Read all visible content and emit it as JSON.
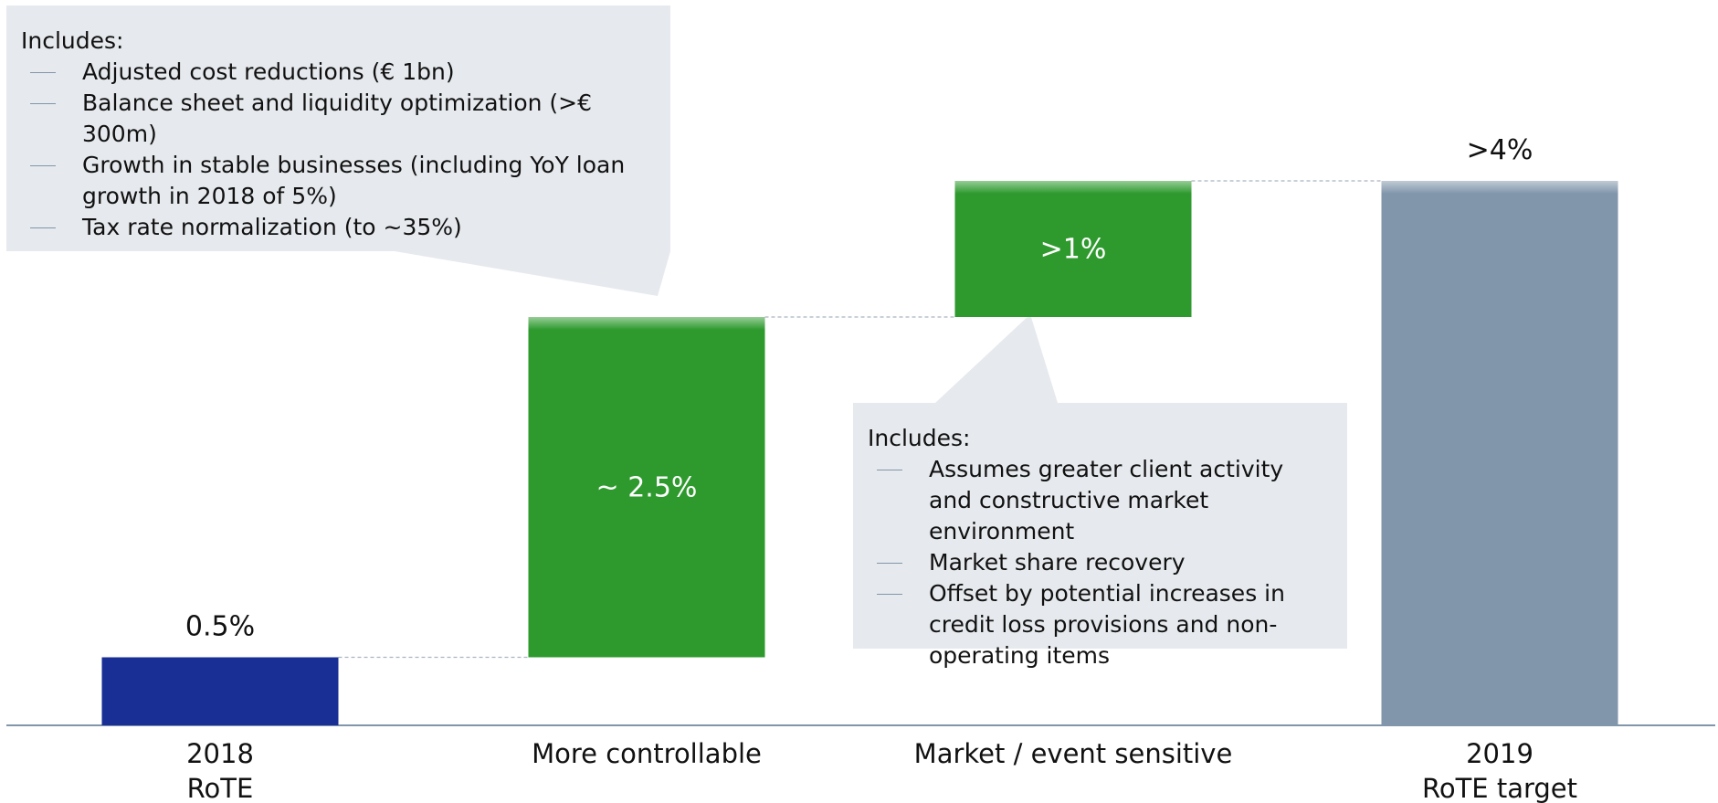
{
  "chart_data": {
    "type": "waterfall",
    "categories": [
      "2018\nRoTE",
      "More controllable",
      "Market / event sensitive",
      "2019\nRoTE target"
    ],
    "values": [
      0.5,
      2.5,
      1,
      4
    ],
    "value_labels": [
      "0.5%",
      "~ 2.5%",
      ">1%",
      ">4%"
    ],
    "colors": [
      "#1a2f96",
      "#2e9a2e",
      "#2e9a2e",
      "#8196aa"
    ],
    "ylim": [
      0,
      5
    ],
    "annotations": [
      {
        "title": "Includes:",
        "items": [
          "Adjusted cost reductions (€ 1bn)",
          "Balance sheet and liquidity optimization (>€ 300m)",
          "Growth in stable businesses (including YoY loan growth in 2018 of 5%)",
          "Tax rate normalization (to ~35%)"
        ]
      },
      {
        "title": "Includes:",
        "items": [
          "Assumes greater client activity and constructive market environment",
          "Market share recovery",
          "Offset by potential increases in credit loss provisions and non-operating items"
        ]
      }
    ]
  }
}
